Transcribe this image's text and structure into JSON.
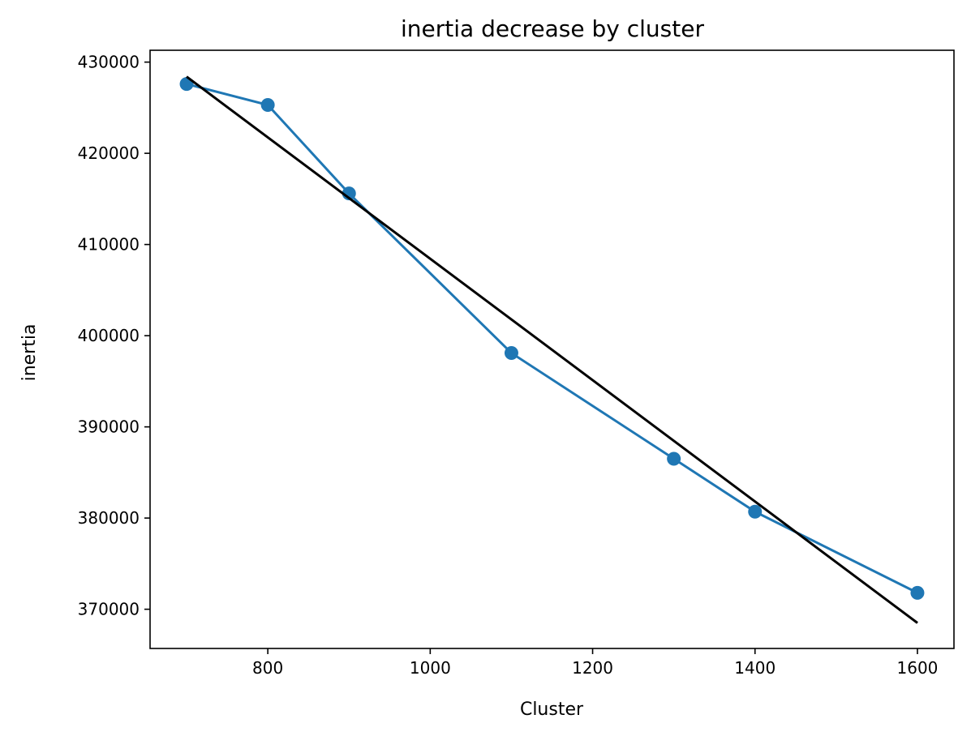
{
  "chart_data": {
    "type": "line",
    "title": "inertia decrease by cluster",
    "xlabel": "Cluster",
    "ylabel": "inertia",
    "xlim": [
      655,
      1645
    ],
    "ylim": [
      365700,
      431300
    ],
    "xticks": [
      800,
      1000,
      1200,
      1400,
      1600
    ],
    "yticks": [
      370000,
      380000,
      390000,
      400000,
      410000,
      420000,
      430000
    ],
    "grid": false,
    "series": [
      {
        "style": "line-marker",
        "color": "#1f77b4",
        "x": [
          700,
          800,
          900,
          1100,
          1300,
          1400,
          1600
        ],
        "y": [
          427600,
          425300,
          415600,
          398100,
          386500,
          380700,
          371800
        ]
      },
      {
        "style": "line",
        "color": "#000000",
        "x": [
          700,
          1600
        ],
        "y": [
          428400,
          368500
        ]
      }
    ]
  }
}
